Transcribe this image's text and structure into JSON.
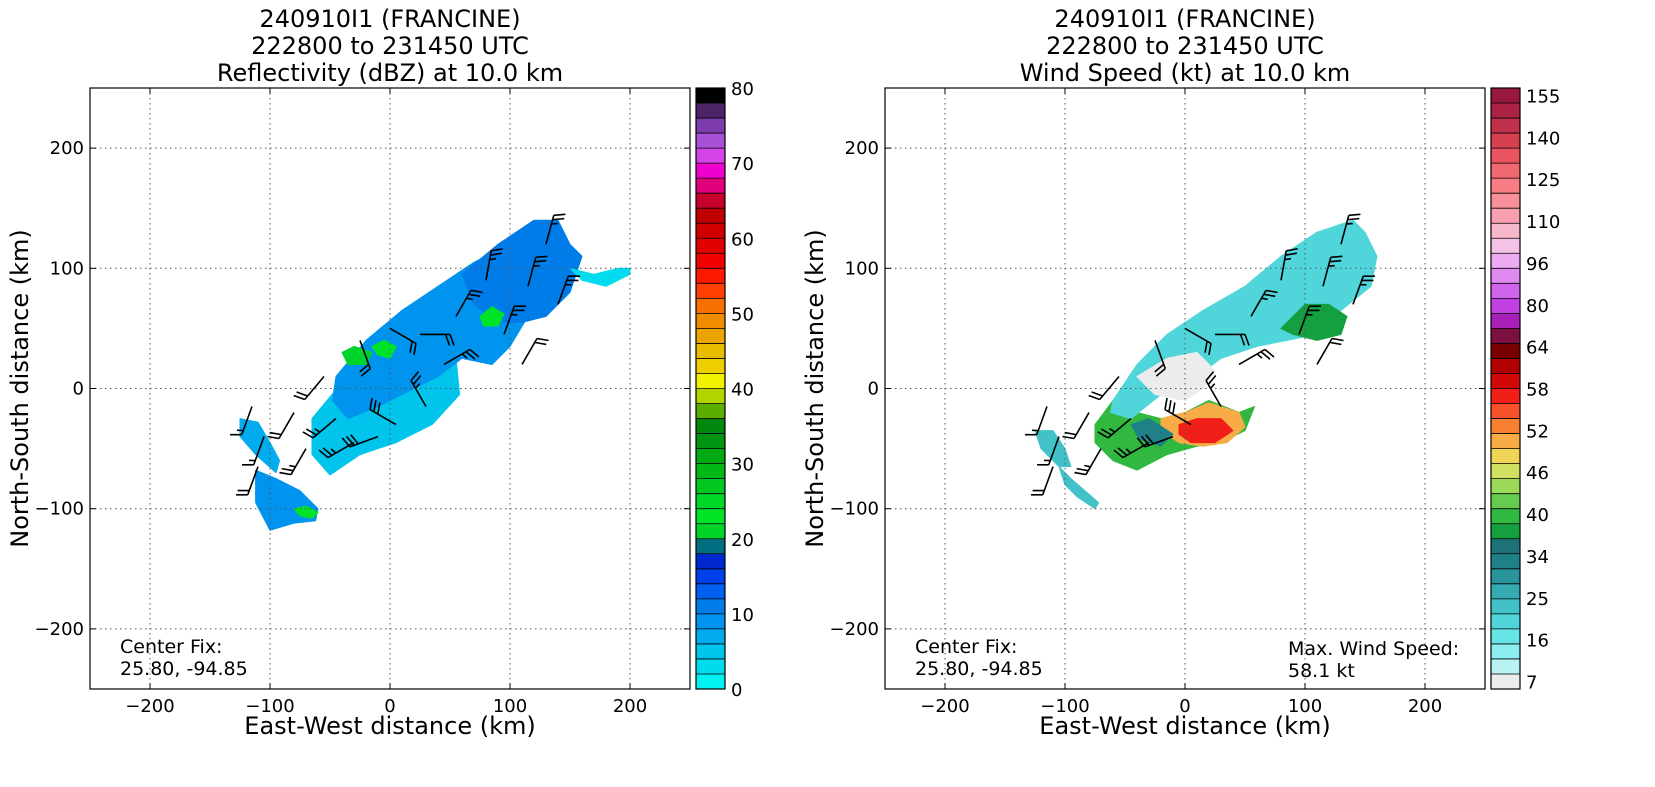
{
  "chart_data": [
    {
      "type": "heatmap",
      "title_lines": [
        "240910I1 (FRANCINE)",
        "222800 to 231450 UTC",
        "Reflectivity (dBZ) at 10.0 km"
      ],
      "xlabel": "East-West distance (km)",
      "ylabel": "North-South distance (km)",
      "xlim": [
        -250,
        250
      ],
      "ylim": [
        -250,
        250
      ],
      "xticks": [
        -200,
        -100,
        0,
        100,
        200
      ],
      "yticks": [
        -200,
        -100,
        0,
        100,
        200
      ],
      "grid": true,
      "annotations": [
        {
          "name": "center-fix",
          "lines": [
            "Center Fix:",
            "25.80, -94.85"
          ],
          "position": "bottom-left"
        }
      ],
      "colorbar": {
        "ticks": [
          "0",
          "10",
          "20",
          "30",
          "40",
          "50",
          "60",
          "70",
          "80"
        ],
        "tick_values": [
          0,
          10,
          20,
          30,
          40,
          50,
          60,
          70,
          80
        ],
        "range": [
          0,
          80
        ],
        "colors": [
          "#00f2f2",
          "#00dcee",
          "#00c4ec",
          "#00acee",
          "#0094ee",
          "#007ce8",
          "#0060f0",
          "#0040e8",
          "#0028d0",
          "#006e80",
          "#00d42a",
          "#00e428",
          "#00d828",
          "#00c820",
          "#00b818",
          "#00a814",
          "#009410",
          "#00880c",
          "#5aae00",
          "#b4d400",
          "#f2f200",
          "#eed000",
          "#e8bc00",
          "#eca400",
          "#f08c00",
          "#f87000",
          "#ff4000",
          "#ff1800",
          "#f00000",
          "#e00000",
          "#d00000",
          "#c00000",
          "#c8002c",
          "#e0007c",
          "#f000d0",
          "#d444e6",
          "#a850d8",
          "#7c3cae",
          "#4e2468",
          "#000000"
        ]
      },
      "features": [
        {
          "x": [
            -125,
            -110,
            -100,
            -92,
            -95,
            -112,
            -125
          ],
          "y": [
            -25,
            -28,
            -45,
            -60,
            -70,
            -55,
            -40
          ],
          "value": 6
        },
        {
          "x": [
            -112,
            -95,
            -75,
            -60,
            -62,
            -80,
            -100,
            -112
          ],
          "y": [
            -68,
            -75,
            -85,
            -100,
            -110,
            -112,
            -118,
            -95
          ],
          "value": 9
        },
        {
          "x": [
            -65,
            -40,
            -10,
            20,
            55,
            58,
            35,
            5,
            -25,
            -50,
            -65
          ],
          "y": [
            -25,
            5,
            30,
            40,
            25,
            -5,
            -30,
            -45,
            -55,
            -72,
            -55
          ],
          "value": 4
        },
        {
          "x": [
            -45,
            -20,
            10,
            40,
            70,
            100,
            120,
            125,
            115,
            100,
            85,
            60,
            40,
            20,
            -10,
            -35,
            -48
          ],
          "y": [
            10,
            40,
            65,
            85,
            105,
            120,
            115,
            90,
            60,
            35,
            20,
            25,
            10,
            0,
            -15,
            -25,
            -10
          ],
          "value": 9
        },
        {
          "x": [
            60,
            90,
            120,
            140,
            150,
            160,
            150,
            130,
            110,
            90,
            70
          ],
          "y": [
            95,
            120,
            140,
            140,
            120,
            110,
            80,
            60,
            55,
            55,
            70
          ],
          "value": 11
        },
        {
          "x": [
            150,
            170,
            190,
            200,
            200,
            180,
            160
          ],
          "y": [
            100,
            95,
            100,
            100,
            95,
            85,
            90
          ],
          "value": 3
        },
        {
          "x": [
            -40,
            -30,
            -15,
            -20,
            -35
          ],
          "y": [
            30,
            35,
            30,
            20,
            20
          ],
          "value": 20
        },
        {
          "x": [
            -15,
            -5,
            5,
            0,
            -10
          ],
          "y": [
            35,
            40,
            35,
            25,
            28
          ],
          "value": 23
        },
        {
          "x": [
            75,
            85,
            95,
            90,
            78
          ],
          "y": [
            60,
            68,
            62,
            52,
            52
          ],
          "value": 22
        },
        {
          "x": [
            -80,
            -70,
            -60,
            -65,
            -75
          ],
          "y": [
            -100,
            -98,
            -103,
            -108,
            -106
          ],
          "value": 22
        }
      ],
      "wind_barbs": [
        {
          "x": -115,
          "y": -15,
          "speed": 15,
          "dir": 200
        },
        {
          "x": -105,
          "y": -40,
          "speed": 15,
          "dir": 200
        },
        {
          "x": -110,
          "y": -65,
          "speed": 20,
          "dir": 200
        },
        {
          "x": -80,
          "y": -20,
          "speed": 20,
          "dir": 210
        },
        {
          "x": -70,
          "y": -50,
          "speed": 25,
          "dir": 210
        },
        {
          "x": -55,
          "y": 10,
          "speed": 20,
          "dir": 220
        },
        {
          "x": -45,
          "y": -25,
          "speed": 25,
          "dir": 230
        },
        {
          "x": -30,
          "y": -45,
          "speed": 25,
          "dir": 240
        },
        {
          "x": -10,
          "y": -40,
          "speed": 30,
          "dir": 250
        },
        {
          "x": -25,
          "y": 40,
          "speed": 20,
          "dir": 160
        },
        {
          "x": 0,
          "y": 50,
          "speed": 20,
          "dir": 120
        },
        {
          "x": 25,
          "y": 45,
          "speed": 20,
          "dir": 90
        },
        {
          "x": 45,
          "y": 20,
          "speed": 25,
          "dir": 60
        },
        {
          "x": 30,
          "y": -15,
          "speed": 25,
          "dir": 330
        },
        {
          "x": 5,
          "y": -30,
          "speed": 30,
          "dir": 300
        },
        {
          "x": 55,
          "y": 60,
          "speed": 25,
          "dir": 30
        },
        {
          "x": 80,
          "y": 90,
          "speed": 25,
          "dir": 10
        },
        {
          "x": 95,
          "y": 45,
          "speed": 25,
          "dir": 20
        },
        {
          "x": 115,
          "y": 85,
          "speed": 25,
          "dir": 15
        },
        {
          "x": 130,
          "y": 120,
          "speed": 25,
          "dir": 15
        },
        {
          "x": 140,
          "y": 70,
          "speed": 25,
          "dir": 20
        },
        {
          "x": 110,
          "y": 20,
          "speed": 20,
          "dir": 30
        }
      ]
    },
    {
      "type": "heatmap",
      "title_lines": [
        "240910I1 (FRANCINE)",
        "222800 to 231450 UTC",
        "Wind Speed (kt) at 10.0 km"
      ],
      "xlabel": "East-West distance (km)",
      "ylabel": "North-South distance (km)",
      "xlim": [
        -250,
        250
      ],
      "ylim": [
        -250,
        250
      ],
      "xticks": [
        -200,
        -100,
        0,
        100,
        200
      ],
      "yticks": [
        -200,
        -100,
        0,
        100,
        200
      ],
      "grid": true,
      "annotations": [
        {
          "name": "center-fix",
          "lines": [
            "Center Fix:",
            "25.80, -94.85"
          ],
          "position": "bottom-left"
        },
        {
          "name": "max-wind-speed",
          "lines": [
            "Max. Wind Speed:",
            "58.1 kt"
          ],
          "position": "bottom-right"
        }
      ],
      "colorbar": {
        "ticks": [
          "7",
          "16",
          "25",
          "34",
          "40",
          "46",
          "52",
          "58",
          "64",
          "80",
          "96",
          "110",
          "125",
          "140",
          "155"
        ],
        "tick_values": [
          7,
          16,
          25,
          34,
          40,
          46,
          52,
          58,
          64,
          80,
          96,
          110,
          125,
          140,
          155
        ],
        "colors": [
          "#ececec",
          "#b8f2f2",
          "#8ceeee",
          "#66e4e6",
          "#50d6da",
          "#42c2c8",
          "#36aab2",
          "#2a949c",
          "#208088",
          "#1c7278",
          "#14a040",
          "#30b840",
          "#66cc50",
          "#9cda5a",
          "#d0e060",
          "#f0d458",
          "#f8ac48",
          "#f88030",
          "#f85028",
          "#f02018",
          "#d00808",
          "#b00000",
          "#780000",
          "#7c1040",
          "#a820b8",
          "#c040e0",
          "#d064ec",
          "#e08af0",
          "#ecaaf0",
          "#f4c2e6",
          "#f8b8cc",
          "#f8a0b0",
          "#f8909c",
          "#f87c84",
          "#f06870",
          "#e85460",
          "#d44050",
          "#c0304a",
          "#ac2244",
          "#98183e"
        ]
      },
      "features": [
        {
          "x": [
            -125,
            -110,
            -100,
            -95,
            -105,
            -120
          ],
          "y": [
            -35,
            -35,
            -50,
            -65,
            -65,
            -50
          ],
          "value": 25
        },
        {
          "x": [
            -105,
            -95,
            -80,
            -72,
            -75,
            -90,
            -100
          ],
          "y": [
            -65,
            -75,
            -88,
            -95,
            -100,
            -90,
            -80
          ],
          "value": 25
        },
        {
          "x": [
            -75,
            -60,
            -40,
            -20,
            0,
            20,
            45,
            58,
            50,
            30,
            10,
            -15,
            -40,
            -60,
            -75
          ],
          "y": [
            -30,
            -10,
            -20,
            -25,
            -20,
            -10,
            -20,
            -15,
            -35,
            -45,
            -48,
            -55,
            -68,
            -60,
            -45
          ],
          "value": 40
        },
        {
          "x": [
            -20,
            0,
            20,
            45,
            50,
            35,
            15,
            -5,
            -20
          ],
          "y": [
            -25,
            -20,
            -12,
            -20,
            -32,
            -45,
            -48,
            -45,
            -35
          ],
          "value": 52
        },
        {
          "x": [
            -5,
            10,
            30,
            40,
            25,
            5,
            -5
          ],
          "y": [
            -30,
            -25,
            -25,
            -35,
            -45,
            -45,
            -38
          ],
          "value": 58
        },
        {
          "x": [
            -60,
            -40,
            -15,
            15,
            50,
            80,
            110,
            140,
            150,
            160,
            155,
            130,
            110,
            85,
            60,
            30,
            10,
            -20,
            -45,
            -62
          ],
          "y": [
            -10,
            20,
            45,
            65,
            85,
            110,
            130,
            140,
            130,
            110,
            85,
            65,
            45,
            40,
            35,
            25,
            10,
            -5,
            -25,
            -20
          ],
          "value": 22
        },
        {
          "x": [
            -40,
            -15,
            10,
            25,
            15,
            0,
            -25
          ],
          "y": [
            10,
            25,
            30,
            15,
            0,
            -10,
            -5
          ],
          "value": 10
        },
        {
          "x": [
            80,
            100,
            120,
            135,
            130,
            110,
            90
          ],
          "y": [
            50,
            70,
            70,
            60,
            45,
            40,
            45
          ],
          "value": 38
        },
        {
          "x": [
            -45,
            -30,
            -10,
            -20,
            -38
          ],
          "y": [
            -30,
            -25,
            -38,
            -48,
            -42
          ],
          "value": 34
        }
      ],
      "wind_barbs": [
        {
          "x": -115,
          "y": -15,
          "speed": 15,
          "dir": 200
        },
        {
          "x": -105,
          "y": -40,
          "speed": 15,
          "dir": 200
        },
        {
          "x": -110,
          "y": -65,
          "speed": 20,
          "dir": 200
        },
        {
          "x": -80,
          "y": -20,
          "speed": 20,
          "dir": 210
        },
        {
          "x": -70,
          "y": -50,
          "speed": 25,
          "dir": 210
        },
        {
          "x": -55,
          "y": 10,
          "speed": 20,
          "dir": 220
        },
        {
          "x": -45,
          "y": -25,
          "speed": 25,
          "dir": 230
        },
        {
          "x": -30,
          "y": -45,
          "speed": 25,
          "dir": 240
        },
        {
          "x": -10,
          "y": -40,
          "speed": 30,
          "dir": 250
        },
        {
          "x": -25,
          "y": 40,
          "speed": 20,
          "dir": 160
        },
        {
          "x": 0,
          "y": 50,
          "speed": 20,
          "dir": 120
        },
        {
          "x": 25,
          "y": 45,
          "speed": 20,
          "dir": 90
        },
        {
          "x": 45,
          "y": 20,
          "speed": 25,
          "dir": 60
        },
        {
          "x": 30,
          "y": -15,
          "speed": 25,
          "dir": 330
        },
        {
          "x": 5,
          "y": -30,
          "speed": 30,
          "dir": 300
        },
        {
          "x": 55,
          "y": 60,
          "speed": 25,
          "dir": 30
        },
        {
          "x": 80,
          "y": 90,
          "speed": 25,
          "dir": 10
        },
        {
          "x": 95,
          "y": 45,
          "speed": 25,
          "dir": 20
        },
        {
          "x": 115,
          "y": 85,
          "speed": 25,
          "dir": 15
        },
        {
          "x": 130,
          "y": 120,
          "speed": 25,
          "dir": 15
        },
        {
          "x": 140,
          "y": 70,
          "speed": 25,
          "dir": 20
        },
        {
          "x": 110,
          "y": 20,
          "speed": 20,
          "dir": 30
        }
      ]
    }
  ]
}
